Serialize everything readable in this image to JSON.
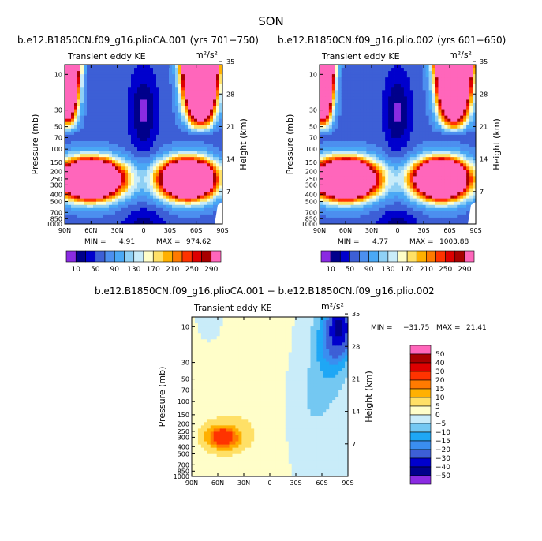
{
  "figure": {
    "title": "SON"
  },
  "chart_data": [
    {
      "type": "heatmap",
      "title": "b.e12.B1850CN.f09_g16.plioCA.001 (yrs 701−750)",
      "variable": "Transient eddy KE",
      "units": "m²/s²",
      "xlabel": "",
      "ylabel": "Pressure (mb)",
      "y2label": "Height (km)",
      "xticks": [
        "90N",
        "60N",
        "30N",
        "0",
        "30S",
        "60S",
        "90S"
      ],
      "yticks": [
        "10",
        "30",
        "50",
        "70",
        "100",
        "150",
        "200",
        "250",
        "300",
        "400",
        "500",
        "700",
        "850",
        "1000"
      ],
      "y2ticks": [
        "35",
        "28",
        "21",
        "14",
        "7"
      ],
      "stats": {
        "min_label": "MIN =",
        "min": "4.91",
        "max_label": "MAX =",
        "max": "974.62"
      },
      "colorbar_labels": [
        "10",
        "50",
        "90",
        "130",
        "170",
        "210",
        "250",
        "290"
      ],
      "max_center": {
        "lat": 57,
        "pressure_mb": 250
      }
    },
    {
      "type": "heatmap",
      "title": "b.e12.B1850CN.f09_g16.plio.002 (yrs 601−650)",
      "variable": "Transient eddy KE",
      "units": "m²/s²",
      "xlabel": "",
      "ylabel": "Pressure (mb)",
      "y2label": "Height (km)",
      "xticks": [
        "90N",
        "60N",
        "30N",
        "0",
        "30S",
        "60S",
        "90S"
      ],
      "yticks": [
        "10",
        "30",
        "50",
        "70",
        "100",
        "150",
        "200",
        "250",
        "300",
        "400",
        "500",
        "700",
        "850",
        "1000"
      ],
      "y2ticks": [
        "35",
        "28",
        "21",
        "14",
        "7"
      ],
      "stats": {
        "min_label": "MIN =",
        "min": "4.77",
        "max_label": "MAX =",
        "max": "1003.88"
      },
      "colorbar_labels": [
        "10",
        "50",
        "90",
        "130",
        "170",
        "210",
        "250",
        "290"
      ],
      "max_center": {
        "lat": 57,
        "pressure_mb": 250
      }
    },
    {
      "type": "heatmap",
      "title": "b.e12.B1850CN.f09_g16.plioCA.001 − b.e12.B1850CN.f09_g16.plio.002",
      "variable": "Transient eddy KE",
      "units": "m²/s²",
      "xlabel": "",
      "ylabel": "Pressure (mb)",
      "y2label": "Height (km)",
      "xticks": [
        "90N",
        "60N",
        "30N",
        "0",
        "30S",
        "60S",
        "90S"
      ],
      "yticks": [
        "10",
        "30",
        "50",
        "70",
        "100",
        "150",
        "200",
        "250",
        "300",
        "400",
        "500",
        "700",
        "850",
        "1000"
      ],
      "y2ticks": [
        "35",
        "28",
        "21",
        "14",
        "7"
      ],
      "stats": {
        "min_label": "MIN =",
        "min": "−31.75",
        "max_label": "MAX =",
        "max": "21.41"
      },
      "colorbar_labels": [
        "50",
        "40",
        "30",
        "20",
        "15",
        "10",
        "5",
        "0",
        "−5",
        "−10",
        "−15",
        "−20",
        "−30",
        "−40",
        "−50"
      ],
      "max_center": {
        "lat": 57,
        "pressure_mb": 300
      }
    }
  ],
  "colors": {
    "abs_scale": [
      "#8a2be2",
      "#00008b",
      "#0000cd",
      "#3d5fd6",
      "#4c8fef",
      "#4aa8f5",
      "#8fd0f5",
      "#c9ecf9",
      "#fffec9",
      "#ffe066",
      "#ffb000",
      "#ff7a00",
      "#ff3300",
      "#dd0000",
      "#a80000",
      "#ff66bb"
    ],
    "diff_scale": [
      "#8a2be2",
      "#00008b",
      "#0000cd",
      "#3d5fd6",
      "#3a8ef0",
      "#1fa7f5",
      "#74c8f2",
      "#c9ecf9",
      "#fffec9",
      "#ffe066",
      "#ffb000",
      "#ff7a00",
      "#ff3300",
      "#dd0000",
      "#a80000",
      "#ff66bb"
    ]
  }
}
